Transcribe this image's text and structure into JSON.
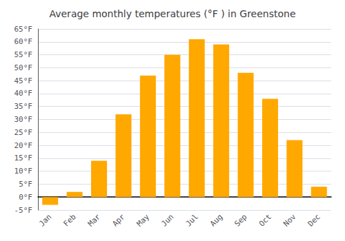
{
  "chart_data": {
    "type": "bar",
    "title": "Average monthly temperatures (°F ) in Greenstone",
    "categories": [
      "Jan",
      "Feb",
      "Mar",
      "Apr",
      "May",
      "Jun",
      "Jul",
      "Aug",
      "Sep",
      "Oct",
      "Nov",
      "Dec"
    ],
    "values": [
      -3,
      2,
      14,
      32,
      47,
      55,
      61,
      59,
      48,
      38,
      22,
      4
    ],
    "color": "#FFA800",
    "ylim": [
      -5,
      65
    ],
    "yticks": [
      {
        "value": -5,
        "label": "-5°F"
      },
      {
        "value": 0,
        "label": "0°F"
      },
      {
        "value": 5,
        "label": "5°F"
      },
      {
        "value": 10,
        "label": "10°F"
      },
      {
        "value": 15,
        "label": "15°F"
      },
      {
        "value": 20,
        "label": "20°F"
      },
      {
        "value": 25,
        "label": "25°F"
      },
      {
        "value": 30,
        "label": "30°F"
      },
      {
        "value": 35,
        "label": "35°F"
      },
      {
        "value": 40,
        "label": "40°F"
      },
      {
        "value": 45,
        "label": "45°F"
      },
      {
        "value": 50,
        "label": "50°F"
      },
      {
        "value": 55,
        "label": "55°F"
      },
      {
        "value": 60,
        "label": "60°F"
      },
      {
        "value": 65,
        "label": "65°F"
      }
    ],
    "grid": true
  }
}
